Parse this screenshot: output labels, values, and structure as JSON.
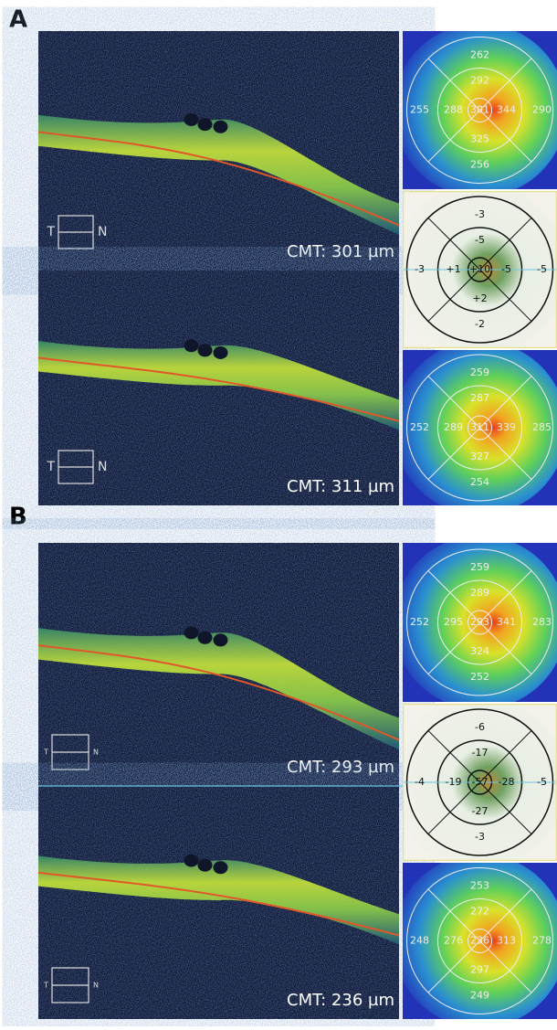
{
  "panels": [
    {
      "label": "A",
      "scans": [
        {
          "cmt": "CMT: 301 µm",
          "temporal": "T",
          "nasal": "N"
        },
        {
          "cmt": "CMT: 311 µm",
          "temporal": "T",
          "nasal": "N"
        }
      ],
      "maps": [
        [
          "262",
          "292",
          "255",
          "288",
          "301",
          "344",
          "290",
          "325",
          "256"
        ],
        [
          "-3",
          "-5",
          "-3",
          "+1",
          "+10",
          "-5",
          "-5",
          "+2",
          "-2"
        ],
        [
          "259",
          "287",
          "252",
          "289",
          "311",
          "339",
          "285",
          "327",
          "254"
        ]
      ]
    },
    {
      "label": "B",
      "scans": [
        {
          "cmt": "CMT: 293 µm",
          "temporal": "T",
          "nasal": "N"
        },
        {
          "cmt": "CMT: 236 µm",
          "temporal": "T",
          "nasal": "N"
        }
      ],
      "maps": [
        [
          "259",
          "289",
          "252",
          "295",
          "293",
          "341",
          "283",
          "324",
          "252"
        ],
        [
          "-6",
          "-17",
          "-4",
          "-19",
          "-57",
          "-28",
          "-5",
          "-27",
          "-3"
        ],
        [
          "253",
          "272",
          "248",
          "276",
          "236",
          "313",
          "278",
          "297",
          "249"
        ]
      ]
    }
  ]
}
